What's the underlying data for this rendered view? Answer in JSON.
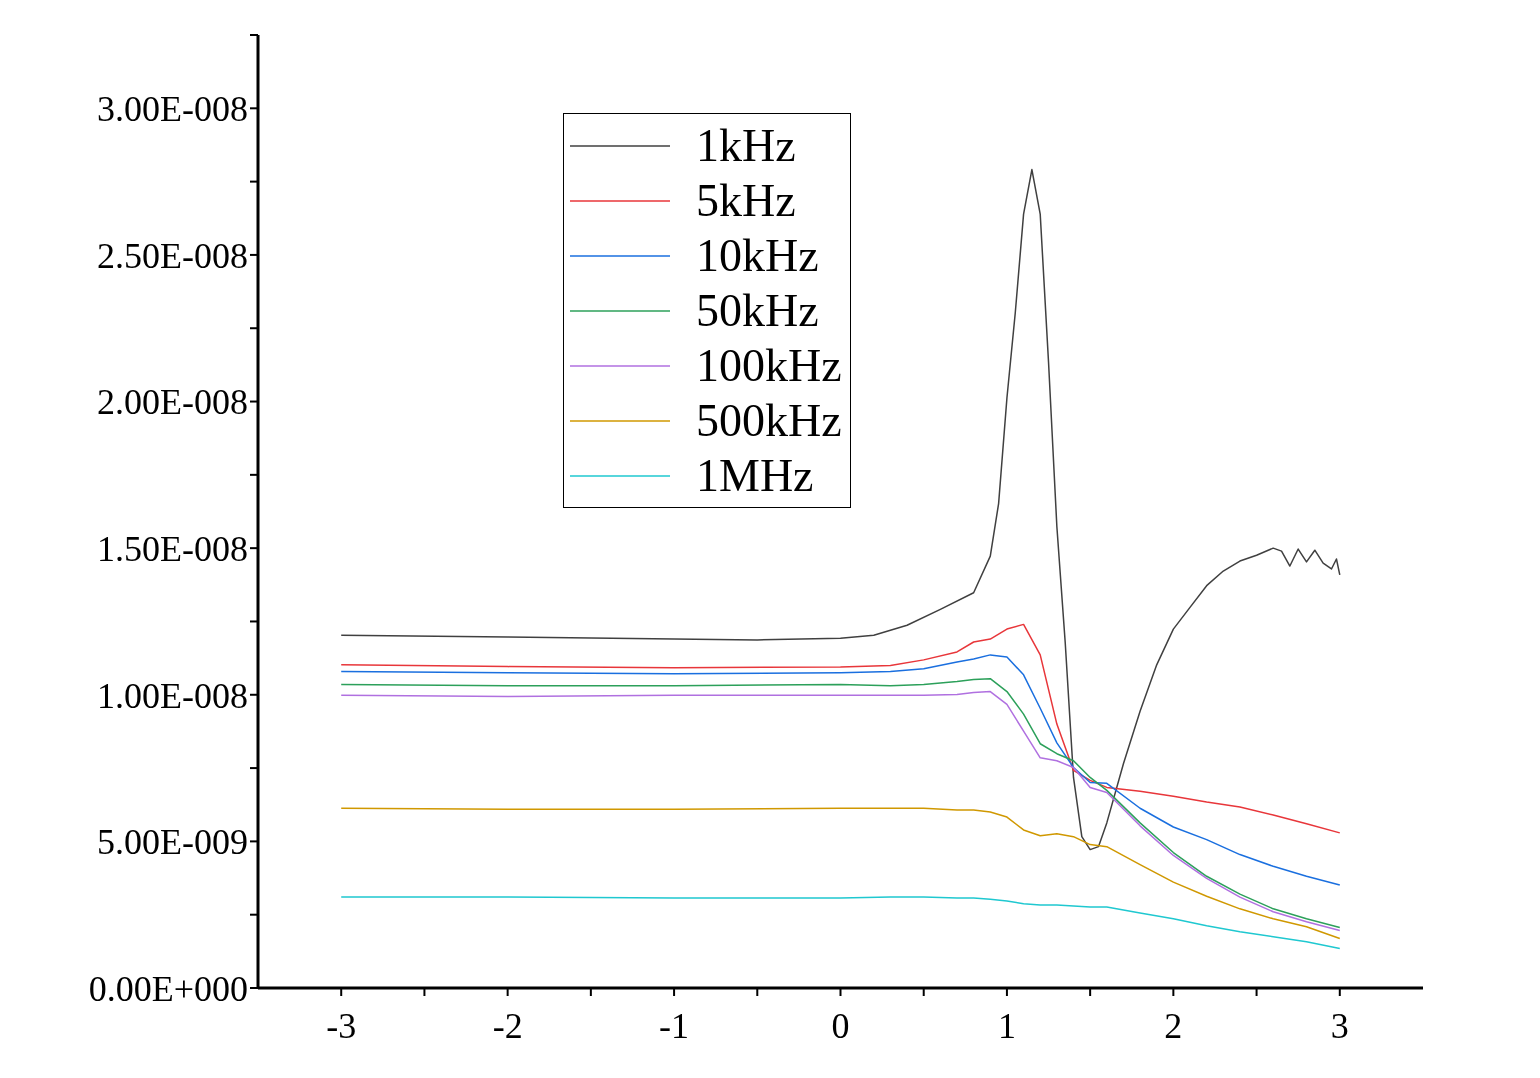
{
  "chart_data": {
    "type": "line",
    "xlim": [
      -3.5,
      3.5
    ],
    "xticks": [
      -3,
      {
        "value": -2.5,
        "label": null
      },
      -2,
      {
        "value": -1.5,
        "label": null
      },
      -1,
      {
        "value": -0.5,
        "label": null
      },
      0,
      {
        "value": 0.5,
        "label": null
      },
      1,
      {
        "value": 1.5,
        "label": null
      },
      2,
      {
        "value": 2.5,
        "label": null
      },
      3
    ],
    "ylim": [
      0,
      3.25e-08
    ],
    "yticks": [
      {
        "value": 0,
        "label": "0.00E+000"
      },
      {
        "value": 2.5e-09,
        "label": null
      },
      {
        "value": 5e-09,
        "label": "5.00E-009"
      },
      {
        "value": 7.5e-09,
        "label": null
      },
      {
        "value": 1e-08,
        "label": "1.00E-008"
      },
      {
        "value": 1.25e-08,
        "label": null
      },
      {
        "value": 1.5e-08,
        "label": "1.50E-008"
      },
      {
        "value": 1.75e-08,
        "label": null
      },
      {
        "value": 2e-08,
        "label": "2.00E-008"
      },
      {
        "value": 2.25e-08,
        "label": null
      },
      {
        "value": 2.5e-08,
        "label": "2.50E-008"
      },
      {
        "value": 2.75e-08,
        "label": null
      },
      {
        "value": 3e-08,
        "label": "3.00E-008"
      },
      {
        "value": 3.25e-08,
        "label": null
      }
    ],
    "grid": false,
    "legend": "top left",
    "marker": "none",
    "line_style": "solid",
    "x": [
      -3,
      -2,
      -1,
      0,
      0.3,
      0.5,
      0.7,
      0.8,
      0.9,
      1.0,
      1.1,
      1.2,
      1.3,
      1.4,
      1.5,
      1.6,
      1.8,
      2.0,
      2.2,
      2.4,
      2.6,
      2.8,
      3.0
    ],
    "series": [
      {
        "name": "1kHz",
        "color": "#404040",
        "x": [
          -3,
          -2,
          -1,
          -0.5,
          0,
          0.2,
          0.4,
          0.6,
          0.8,
          0.9,
          0.95,
          1.0,
          1.05,
          1.1,
          1.15,
          1.2,
          1.25,
          1.3,
          1.35,
          1.4,
          1.45,
          1.5,
          1.55,
          1.6,
          1.7,
          1.8,
          1.9,
          2.0,
          2.1,
          2.2,
          2.3,
          2.4,
          2.5,
          2.6,
          2.65,
          2.7,
          2.75,
          2.8,
          2.85,
          2.9,
          2.95,
          2.98,
          3.0
        ],
        "values": [
          1.203e-08,
          1.197e-08,
          1.19e-08,
          1.187e-08,
          1.193e-08,
          1.203e-08,
          1.237e-08,
          1.291e-08,
          1.348e-08,
          1.473e-08,
          1.652e-08,
          2.012e-08,
          2.302e-08,
          2.639e-08,
          2.791e-08,
          2.639e-08,
          2.134e-08,
          1.574e-08,
          1.18e-08,
          7.18e-09,
          5.16e-09,
          4.72e-09,
          4.82e-09,
          5.63e-09,
          7.65e-09,
          9.44e-09,
          1.102e-08,
          1.224e-08,
          1.298e-08,
          1.372e-08,
          1.422e-08,
          1.456e-08,
          1.476e-08,
          1.5e-08,
          1.49e-08,
          1.439e-08,
          1.497e-08,
          1.453e-08,
          1.493e-08,
          1.449e-08,
          1.429e-08,
          1.463e-08,
          1.409e-08
        ]
      },
      {
        "name": "5kHz",
        "color": "#e8363a",
        "values": [
          1.102e-08,
          1.096e-08,
          1.092e-08,
          1.095e-08,
          1.1e-08,
          1.119e-08,
          1.146e-08,
          1.18e-08,
          1.19e-08,
          1.224e-08,
          1.24e-08,
          1.136e-08,
          9e-09,
          7.42e-09,
          7.08e-09,
          6.84e-09,
          6.71e-09,
          6.54e-09,
          6.34e-09,
          6.17e-09,
          5.9e-09,
          5.6e-09,
          5.29e-09
        ]
      },
      {
        "name": "10kHz",
        "color": "#1a6fdf",
        "values": [
          1.079e-08,
          1.075e-08,
          1.072e-08,
          1.075e-08,
          1.079e-08,
          1.089e-08,
          1.112e-08,
          1.122e-08,
          1.136e-08,
          1.129e-08,
          1.068e-08,
          9.54e-09,
          8.36e-09,
          7.52e-09,
          7.01e-09,
          6.98e-09,
          6.13e-09,
          5.49e-09,
          5.06e-09,
          4.55e-09,
          4.15e-09,
          3.81e-09,
          3.51e-09
        ]
      },
      {
        "name": "50kHz",
        "color": "#2ca05a",
        "values": [
          1.035e-08,
          1.031e-08,
          1.031e-08,
          1.035e-08,
          1.031e-08,
          1.035e-08,
          1.045e-08,
          1.052e-08,
          1.055e-08,
          1.011e-08,
          9.34e-09,
          8.33e-09,
          7.99e-09,
          7.75e-09,
          7.18e-09,
          6.74e-09,
          5.63e-09,
          4.62e-09,
          3.81e-09,
          3.2e-09,
          2.7e-09,
          2.36e-09,
          2.06e-09
        ]
      },
      {
        "name": "100kHz",
        "color": "#b070e0",
        "values": [
          9.98e-09,
          9.94e-09,
          9.98e-09,
          9.98e-09,
          9.98e-09,
          9.98e-09,
          1.001e-08,
          1.008e-08,
          1.011e-08,
          9.67e-09,
          8.76e-09,
          7.85e-09,
          7.75e-09,
          7.52e-09,
          6.84e-09,
          6.67e-09,
          5.53e-09,
          4.52e-09,
          3.74e-09,
          3.1e-09,
          2.6e-09,
          2.26e-09,
          1.96e-09
        ]
      },
      {
        "name": "500kHz",
        "color": "#d09800",
        "values": [
          6.13e-09,
          6.1e-09,
          6.1e-09,
          6.13e-09,
          6.13e-09,
          6.13e-09,
          6.07e-09,
          6.07e-09,
          6e-09,
          5.83e-09,
          5.39e-09,
          5.19e-09,
          5.26e-09,
          5.16e-09,
          4.89e-09,
          4.82e-09,
          4.21e-09,
          3.61e-09,
          3.13e-09,
          2.7e-09,
          2.36e-09,
          2.09e-09,
          1.69e-09
        ]
      },
      {
        "name": "1MHz",
        "color": "#1fc8d0",
        "values": [
          3.1e-09,
          3.1e-09,
          3.07e-09,
          3.07e-09,
          3.1e-09,
          3.1e-09,
          3.07e-09,
          3.07e-09,
          3.03e-09,
          2.97e-09,
          2.87e-09,
          2.83e-09,
          2.83e-09,
          2.8e-09,
          2.76e-09,
          2.76e-09,
          2.56e-09,
          2.36e-09,
          2.12e-09,
          1.92e-09,
          1.75e-09,
          1.58e-09,
          1.35e-09
        ]
      }
    ]
  }
}
